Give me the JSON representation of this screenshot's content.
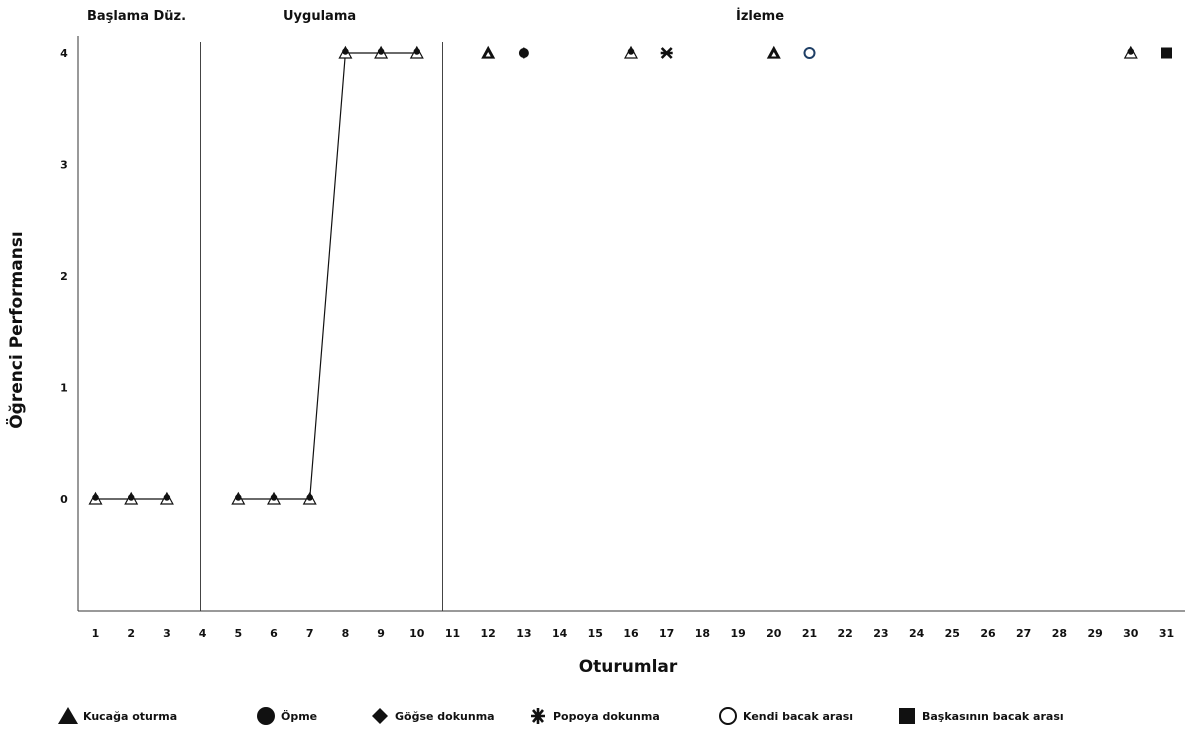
{
  "chart_data": {
    "type": "line",
    "xlabel": "Oturumlar",
    "ylabel": "Öğrenci Performansı",
    "x_ticks": [
      "1",
      "2",
      "3",
      "4",
      "5",
      "6",
      "7",
      "8",
      "9",
      "10",
      "11",
      "12",
      "13",
      "14",
      "15",
      "16",
      "17",
      "18",
      "19",
      "20",
      "21",
      "22",
      "23",
      "24",
      "25",
      "26",
      "27",
      "28",
      "29",
      "30",
      "31"
    ],
    "y_ticks": [
      "0",
      "1",
      "2",
      "3",
      "4"
    ],
    "ylim": [
      -1,
      4
    ],
    "grid": false,
    "phases": [
      {
        "label": "Başlama Düz.",
        "sessions": [
          1,
          3
        ]
      },
      {
        "label": "Uygulama",
        "sessions": [
          5,
          10
        ]
      },
      {
        "label": "İzleme",
        "sessions": [
          12,
          31
        ]
      }
    ],
    "phase_change_after": [
      4,
      11
    ],
    "line_segments": [
      [
        [
          1,
          0
        ],
        [
          2,
          0
        ],
        [
          3,
          0
        ]
      ],
      [
        [
          5,
          0
        ],
        [
          6,
          0
        ],
        [
          7,
          0
        ],
        [
          8,
          4
        ],
        [
          9,
          4
        ],
        [
          10,
          4
        ]
      ]
    ],
    "points": [
      {
        "x": 1,
        "y": 0,
        "marker": "triangle-dot"
      },
      {
        "x": 2,
        "y": 0,
        "marker": "triangle-dot"
      },
      {
        "x": 3,
        "y": 0,
        "marker": "triangle-dot"
      },
      {
        "x": 5,
        "y": 0,
        "marker": "triangle-dot"
      },
      {
        "x": 6,
        "y": 0,
        "marker": "triangle-dot"
      },
      {
        "x": 7,
        "y": 0,
        "marker": "triangle-dot"
      },
      {
        "x": 8,
        "y": 4,
        "marker": "triangle-dot"
      },
      {
        "x": 9,
        "y": 4,
        "marker": "triangle-dot"
      },
      {
        "x": 10,
        "y": 4,
        "marker": "triangle-dot"
      },
      {
        "x": 12,
        "y": 4,
        "marker": "triangle"
      },
      {
        "x": 13,
        "y": 4,
        "marker": "circle-diamond"
      },
      {
        "x": 16,
        "y": 4,
        "marker": "triangle-dot"
      },
      {
        "x": 17,
        "y": 4,
        "marker": "star"
      },
      {
        "x": 20,
        "y": 4,
        "marker": "triangle"
      },
      {
        "x": 21,
        "y": 4,
        "marker": "open-circle"
      },
      {
        "x": 30,
        "y": 4,
        "marker": "triangle-dot"
      },
      {
        "x": 31,
        "y": 4,
        "marker": "square"
      }
    ],
    "legend": [
      {
        "label": "Kucağa oturma",
        "marker": "triangle"
      },
      {
        "label": "Öpme",
        "marker": "circle"
      },
      {
        "label": "Göğse dokunma",
        "marker": "diamond"
      },
      {
        "label": "Popoya dokunma",
        "marker": "star"
      },
      {
        "label": "Kendi bacak arası",
        "marker": "open-circle"
      },
      {
        "label": "Başkasının bacak arası",
        "marker": "square"
      }
    ],
    "legend_position": "bottom"
  }
}
